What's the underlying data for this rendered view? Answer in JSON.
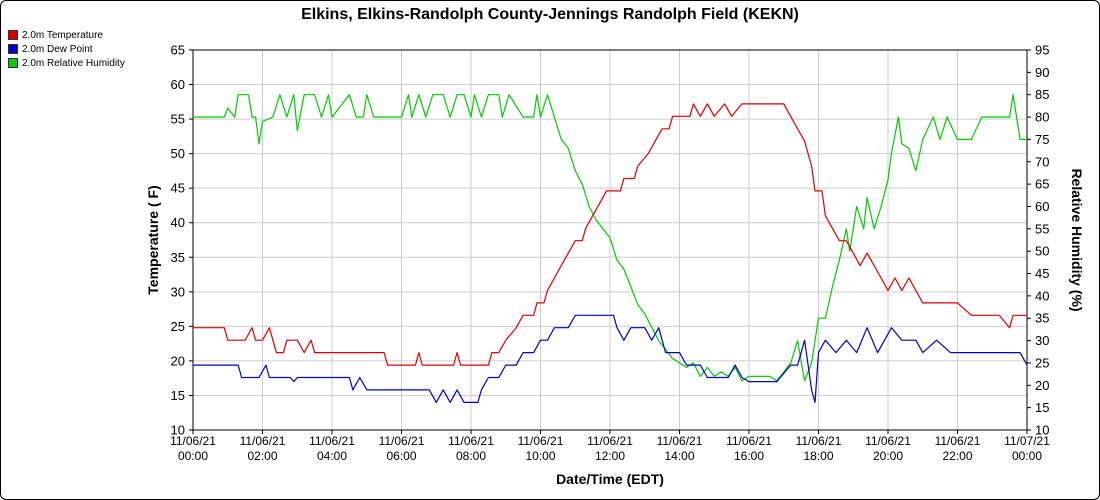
{
  "chart_data": {
    "type": "line",
    "title": "Elkins, Elkins-Randolph County-Jennings Randolph Field (KEKN)",
    "xlabel": "Date/Time (EDT)",
    "ylabel_left": "Temperature ( F)",
    "ylabel_right": "Relative Humidity (%)",
    "ylim_left": [
      10,
      65
    ],
    "ylim_right": [
      10,
      95
    ],
    "grid": true,
    "legend_position": "top-left",
    "x_ticks": [
      {
        "hour": 0,
        "date": "11/06/21",
        "time": "00:00"
      },
      {
        "hour": 2,
        "date": "11/06/21",
        "time": "02:00"
      },
      {
        "hour": 4,
        "date": "11/06/21",
        "time": "04:00"
      },
      {
        "hour": 6,
        "date": "11/06/21",
        "time": "06:00"
      },
      {
        "hour": 8,
        "date": "11/06/21",
        "time": "08:00"
      },
      {
        "hour": 10,
        "date": "11/06/21",
        "time": "10:00"
      },
      {
        "hour": 12,
        "date": "11/06/21",
        "time": "12:00"
      },
      {
        "hour": 14,
        "date": "11/06/21",
        "time": "14:00"
      },
      {
        "hour": 16,
        "date": "11/06/21",
        "time": "16:00"
      },
      {
        "hour": 18,
        "date": "11/06/21",
        "time": "18:00"
      },
      {
        "hour": 20,
        "date": "11/06/21",
        "time": "20:00"
      },
      {
        "hour": 22,
        "date": "11/06/21",
        "time": "22:00"
      },
      {
        "hour": 24,
        "date": "11/07/21",
        "time": "00:00"
      }
    ],
    "y_ticks_left": [
      10,
      15,
      20,
      25,
      30,
      35,
      40,
      45,
      50,
      55,
      60,
      65
    ],
    "y_ticks_right": [
      10,
      15,
      20,
      25,
      30,
      35,
      40,
      45,
      50,
      55,
      60,
      65,
      70,
      75,
      80,
      85,
      90,
      95
    ],
    "series": [
      {
        "name": "2.0m Temperature",
        "color": "#dd0000",
        "axis": "left",
        "points": [
          [
            0,
            24.8
          ],
          [
            0.9,
            24.8
          ],
          [
            1,
            23
          ],
          [
            1.5,
            23
          ],
          [
            1.7,
            24.8
          ],
          [
            1.8,
            23
          ],
          [
            2,
            23
          ],
          [
            2.2,
            24.8
          ],
          [
            2.4,
            21.2
          ],
          [
            2.6,
            21.2
          ],
          [
            2.7,
            23
          ],
          [
            3,
            23
          ],
          [
            3.2,
            21.2
          ],
          [
            3.4,
            23
          ],
          [
            3.5,
            21.2
          ],
          [
            4,
            21.2
          ],
          [
            5,
            21.2
          ],
          [
            5.5,
            21.2
          ],
          [
            5.6,
            19.4
          ],
          [
            6,
            19.4
          ],
          [
            6.4,
            19.4
          ],
          [
            6.5,
            21.2
          ],
          [
            6.6,
            19.4
          ],
          [
            7,
            19.4
          ],
          [
            7.5,
            19.4
          ],
          [
            7.6,
            21.2
          ],
          [
            7.7,
            19.4
          ],
          [
            8,
            19.4
          ],
          [
            8.5,
            19.4
          ],
          [
            8.6,
            21.2
          ],
          [
            8.8,
            21.2
          ],
          [
            9,
            23
          ],
          [
            9.3,
            24.8
          ],
          [
            9.5,
            26.6
          ],
          [
            9.8,
            26.6
          ],
          [
            9.9,
            28.4
          ],
          [
            10.1,
            28.4
          ],
          [
            10.2,
            30.2
          ],
          [
            10.4,
            32
          ],
          [
            10.6,
            33.8
          ],
          [
            10.8,
            35.6
          ],
          [
            11,
            37.4
          ],
          [
            11.2,
            37.4
          ],
          [
            11.3,
            39.2
          ],
          [
            11.5,
            41
          ],
          [
            11.7,
            42.8
          ],
          [
            11.9,
            44.6
          ],
          [
            12.3,
            44.6
          ],
          [
            12.4,
            46.4
          ],
          [
            12.7,
            46.4
          ],
          [
            12.8,
            48.2
          ],
          [
            13.1,
            50
          ],
          [
            13.3,
            51.8
          ],
          [
            13.5,
            53.6
          ],
          [
            13.7,
            53.6
          ],
          [
            13.8,
            55.4
          ],
          [
            14.3,
            55.4
          ],
          [
            14.4,
            57.2
          ],
          [
            14.6,
            55.4
          ],
          [
            14.8,
            57.2
          ],
          [
            15,
            55.4
          ],
          [
            15.3,
            57.2
          ],
          [
            15.5,
            55.4
          ],
          [
            15.8,
            57.2
          ],
          [
            16,
            57.2
          ],
          [
            16.8,
            57.2
          ],
          [
            17,
            57.2
          ],
          [
            17.2,
            55.4
          ],
          [
            17.4,
            53.6
          ],
          [
            17.6,
            51.8
          ],
          [
            17.8,
            48.2
          ],
          [
            17.9,
            44.6
          ],
          [
            18.1,
            44.6
          ],
          [
            18.2,
            41
          ],
          [
            18.4,
            39.2
          ],
          [
            18.6,
            37.4
          ],
          [
            18.8,
            37.4
          ],
          [
            19,
            35.6
          ],
          [
            19.2,
            33.8
          ],
          [
            19.4,
            35.6
          ],
          [
            19.6,
            33.8
          ],
          [
            19.8,
            32
          ],
          [
            20,
            30.2
          ],
          [
            20.2,
            32
          ],
          [
            20.4,
            30.2
          ],
          [
            20.6,
            32
          ],
          [
            20.8,
            30.2
          ],
          [
            21,
            28.4
          ],
          [
            21.3,
            28.4
          ],
          [
            21.6,
            28.4
          ],
          [
            22,
            28.4
          ],
          [
            22.4,
            26.6
          ],
          [
            22.8,
            26.6
          ],
          [
            23.2,
            26.6
          ],
          [
            23.5,
            24.8
          ],
          [
            23.6,
            26.6
          ],
          [
            24,
            26.6
          ]
        ]
      },
      {
        "name": "2.0m Dew Point",
        "color": "#0000cc",
        "axis": "left",
        "points": [
          [
            0,
            19.4
          ],
          [
            1.3,
            19.4
          ],
          [
            1.4,
            17.6
          ],
          [
            1.9,
            17.6
          ],
          [
            2.1,
            19.4
          ],
          [
            2.2,
            17.6
          ],
          [
            2.8,
            17.6
          ],
          [
            2.9,
            17
          ],
          [
            3,
            17.6
          ],
          [
            4.2,
            17.6
          ],
          [
            4.5,
            17.6
          ],
          [
            4.6,
            15.8
          ],
          [
            4.8,
            17.6
          ],
          [
            5,
            15.8
          ],
          [
            6,
            15.8
          ],
          [
            6.6,
            15.8
          ],
          [
            6.8,
            15.8
          ],
          [
            7,
            14
          ],
          [
            7.2,
            15.8
          ],
          [
            7.4,
            14
          ],
          [
            7.6,
            15.8
          ],
          [
            7.8,
            14
          ],
          [
            8.2,
            14
          ],
          [
            8.3,
            15.8
          ],
          [
            8.5,
            17.6
          ],
          [
            8.8,
            17.6
          ],
          [
            9,
            19.4
          ],
          [
            9.3,
            19.4
          ],
          [
            9.5,
            21.2
          ],
          [
            9.8,
            21.2
          ],
          [
            10,
            23
          ],
          [
            10.2,
            23
          ],
          [
            10.4,
            24.8
          ],
          [
            10.8,
            24.8
          ],
          [
            11,
            26.6
          ],
          [
            12,
            26.6
          ],
          [
            12.1,
            26.6
          ],
          [
            12.2,
            24.8
          ],
          [
            12.4,
            23
          ],
          [
            12.6,
            24.8
          ],
          [
            13,
            24.8
          ],
          [
            13.2,
            23
          ],
          [
            13.4,
            24.8
          ],
          [
            13.6,
            21.2
          ],
          [
            14,
            21.2
          ],
          [
            14.2,
            19.4
          ],
          [
            14.6,
            19.4
          ],
          [
            14.8,
            17.6
          ],
          [
            15.2,
            17.6
          ],
          [
            15.4,
            17.6
          ],
          [
            15.6,
            19.4
          ],
          [
            15.8,
            17.6
          ],
          [
            16,
            17
          ],
          [
            16.8,
            17
          ],
          [
            17.2,
            19.4
          ],
          [
            17.4,
            19.4
          ],
          [
            17.6,
            23
          ],
          [
            17.8,
            15.8
          ],
          [
            17.9,
            14
          ],
          [
            18,
            21.2
          ],
          [
            18.2,
            23
          ],
          [
            18.5,
            21.2
          ],
          [
            18.8,
            23
          ],
          [
            19.1,
            21.2
          ],
          [
            19.4,
            24.8
          ],
          [
            19.7,
            21.2
          ],
          [
            19.9,
            23
          ],
          [
            20.1,
            24.8
          ],
          [
            20.4,
            23
          ],
          [
            20.8,
            23
          ],
          [
            21,
            21.2
          ],
          [
            21.4,
            23
          ],
          [
            21.8,
            21.2
          ],
          [
            22.2,
            21.2
          ],
          [
            22.8,
            21.2
          ],
          [
            23.2,
            21.2
          ],
          [
            23.8,
            21.2
          ],
          [
            24,
            19.4
          ]
        ]
      },
      {
        "name": "2.0m Relative Humidity",
        "color": "#00cc00",
        "axis": "right",
        "points": [
          [
            0,
            80
          ],
          [
            0.9,
            80
          ],
          [
            1,
            82
          ],
          [
            1.2,
            80
          ],
          [
            1.3,
            85
          ],
          [
            1.6,
            85
          ],
          [
            1.7,
            80
          ],
          [
            1.8,
            80
          ],
          [
            1.9,
            74
          ],
          [
            2,
            79
          ],
          [
            2.3,
            80
          ],
          [
            2.5,
            85
          ],
          [
            2.7,
            80
          ],
          [
            2.9,
            85
          ],
          [
            3,
            77
          ],
          [
            3.2,
            85
          ],
          [
            3.5,
            85
          ],
          [
            3.7,
            80
          ],
          [
            3.9,
            85
          ],
          [
            4,
            80
          ],
          [
            4.5,
            85
          ],
          [
            4.7,
            80
          ],
          [
            4.9,
            80
          ],
          [
            5,
            85
          ],
          [
            5.2,
            80
          ],
          [
            5.6,
            80
          ],
          [
            6,
            80
          ],
          [
            6.2,
            85
          ],
          [
            6.3,
            80
          ],
          [
            6.5,
            85
          ],
          [
            6.7,
            80
          ],
          [
            6.9,
            85
          ],
          [
            7.2,
            85
          ],
          [
            7.4,
            80
          ],
          [
            7.6,
            85
          ],
          [
            7.8,
            85
          ],
          [
            8,
            80
          ],
          [
            8.1,
            85
          ],
          [
            8.3,
            80
          ],
          [
            8.5,
            85
          ],
          [
            8.8,
            85
          ],
          [
            8.9,
            80
          ],
          [
            9.1,
            85
          ],
          [
            9.5,
            80
          ],
          [
            9.8,
            80
          ],
          [
            9.9,
            85
          ],
          [
            10,
            80
          ],
          [
            10.2,
            85
          ],
          [
            10.4,
            80
          ],
          [
            10.6,
            75
          ],
          [
            10.8,
            73
          ],
          [
            11,
            68
          ],
          [
            11.2,
            65
          ],
          [
            11.4,
            60
          ],
          [
            11.6,
            57
          ],
          [
            11.8,
            55
          ],
          [
            12,
            53
          ],
          [
            12.2,
            48
          ],
          [
            12.4,
            46
          ],
          [
            12.6,
            42
          ],
          [
            12.8,
            38
          ],
          [
            13,
            36
          ],
          [
            13.2,
            33
          ],
          [
            13.4,
            30
          ],
          [
            13.6,
            28
          ],
          [
            13.8,
            26
          ],
          [
            14,
            25
          ],
          [
            14.2,
            24
          ],
          [
            14.4,
            25
          ],
          [
            14.6,
            22
          ],
          [
            14.8,
            24
          ],
          [
            15,
            22
          ],
          [
            15.2,
            23
          ],
          [
            15.4,
            22
          ],
          [
            15.6,
            24
          ],
          [
            15.8,
            21
          ],
          [
            16,
            22
          ],
          [
            16.6,
            22
          ],
          [
            16.8,
            21
          ],
          [
            17,
            23
          ],
          [
            17.2,
            25
          ],
          [
            17.4,
            30
          ],
          [
            17.6,
            21
          ],
          [
            17.8,
            25
          ],
          [
            18,
            35
          ],
          [
            18.2,
            35
          ],
          [
            18.4,
            42
          ],
          [
            18.6,
            48
          ],
          [
            18.8,
            55
          ],
          [
            18.9,
            50
          ],
          [
            19.1,
            60
          ],
          [
            19.3,
            55
          ],
          [
            19.4,
            62
          ],
          [
            19.6,
            55
          ],
          [
            19.8,
            60
          ],
          [
            20,
            66
          ],
          [
            20.1,
            72
          ],
          [
            20.3,
            80
          ],
          [
            20.4,
            74
          ],
          [
            20.6,
            73
          ],
          [
            20.8,
            68
          ],
          [
            21,
            75
          ],
          [
            21.3,
            80
          ],
          [
            21.5,
            75
          ],
          [
            21.7,
            80
          ],
          [
            22,
            75
          ],
          [
            22.4,
            75
          ],
          [
            22.7,
            80
          ],
          [
            22.9,
            80
          ],
          [
            23.2,
            80
          ],
          [
            23.5,
            80
          ],
          [
            23.6,
            85
          ],
          [
            23.8,
            75
          ],
          [
            24,
            75
          ]
        ]
      }
    ]
  }
}
